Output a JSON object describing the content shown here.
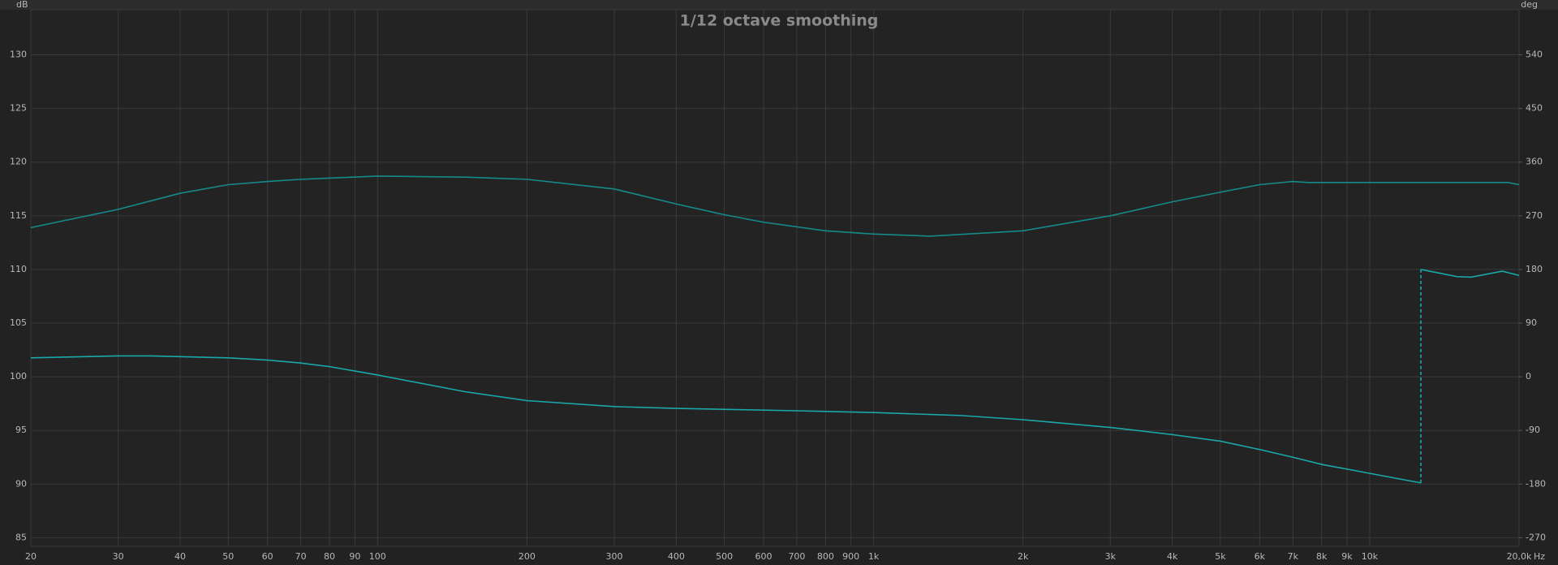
{
  "chart_data": {
    "type": "line",
    "title": "1/12 octave smoothing",
    "y_label": "dB",
    "y2_label": "deg",
    "x_label": "Hz",
    "xscale": "log",
    "grid": true,
    "xlim": [
      20,
      20000
    ],
    "xticks": [
      20,
      30,
      40,
      50,
      60,
      70,
      80,
      90,
      100,
      200,
      300,
      400,
      500,
      600,
      700,
      800,
      900,
      {
        "value": 1000,
        "label": "1k"
      },
      {
        "value": 2000,
        "label": "2k"
      },
      {
        "value": 3000,
        "label": "3k"
      },
      {
        "value": 4000,
        "label": "4k"
      },
      {
        "value": 5000,
        "label": "5k"
      },
      {
        "value": 6000,
        "label": "6k"
      },
      {
        "value": 7000,
        "label": "7k"
      },
      {
        "value": 8000,
        "label": "8k"
      },
      {
        "value": 9000,
        "label": "9k"
      },
      {
        "value": 10000,
        "label": "10k"
      },
      {
        "value": 20000,
        "label": "20,0k"
      }
    ],
    "ylim": [
      84.2,
      134.2
    ],
    "yticks": [
      85,
      90,
      95,
      100,
      105,
      110,
      115,
      120,
      125,
      130
    ],
    "y2lim": [
      -284.4,
      615.6
    ],
    "y2ticks": [
      -270,
      -180,
      -90,
      0,
      90,
      180,
      270,
      360,
      450,
      540
    ],
    "series": [
      {
        "color": "#168a8a",
        "x": [
          20,
          30,
          40,
          50,
          60,
          70,
          100,
          150,
          200,
          300,
          400,
          500,
          600,
          800,
          1000,
          1300,
          2000,
          3000,
          4000,
          5000,
          6000,
          7000,
          7500,
          8000,
          10000,
          15000,
          19000,
          20000
        ],
        "values": [
          113.9,
          115.6,
          117.1,
          117.9,
          118.2,
          118.4,
          118.7,
          118.6,
          118.4,
          117.5,
          116.1,
          115.1,
          114.4,
          113.6,
          113.3,
          113.1,
          113.6,
          115.0,
          116.3,
          117.2,
          117.9,
          118.2,
          118.1,
          118.1,
          118.1,
          118.1,
          118.1,
          117.9
        ]
      },
      {
        "color": "#1aa8a8",
        "axis": "y2",
        "x": [
          20,
          30,
          35,
          50,
          60,
          70,
          80,
          100,
          150,
          200,
          300,
          400,
          700,
          1000,
          1500,
          2000,
          3000,
          4000,
          5000,
          6000,
          7000,
          8000,
          10000,
          12680,
          12680,
          15000,
          16000,
          18500,
          20000
        ],
        "values": [
          31.7,
          35,
          35,
          31.7,
          28,
          23,
          17,
          3,
          -25,
          -40,
          -50,
          -53,
          -57,
          -60,
          -65,
          -72,
          -85,
          -97,
          -108,
          -122,
          -135,
          -147,
          -162,
          -178,
          180,
          168,
          167,
          177,
          170
        ]
      }
    ]
  }
}
